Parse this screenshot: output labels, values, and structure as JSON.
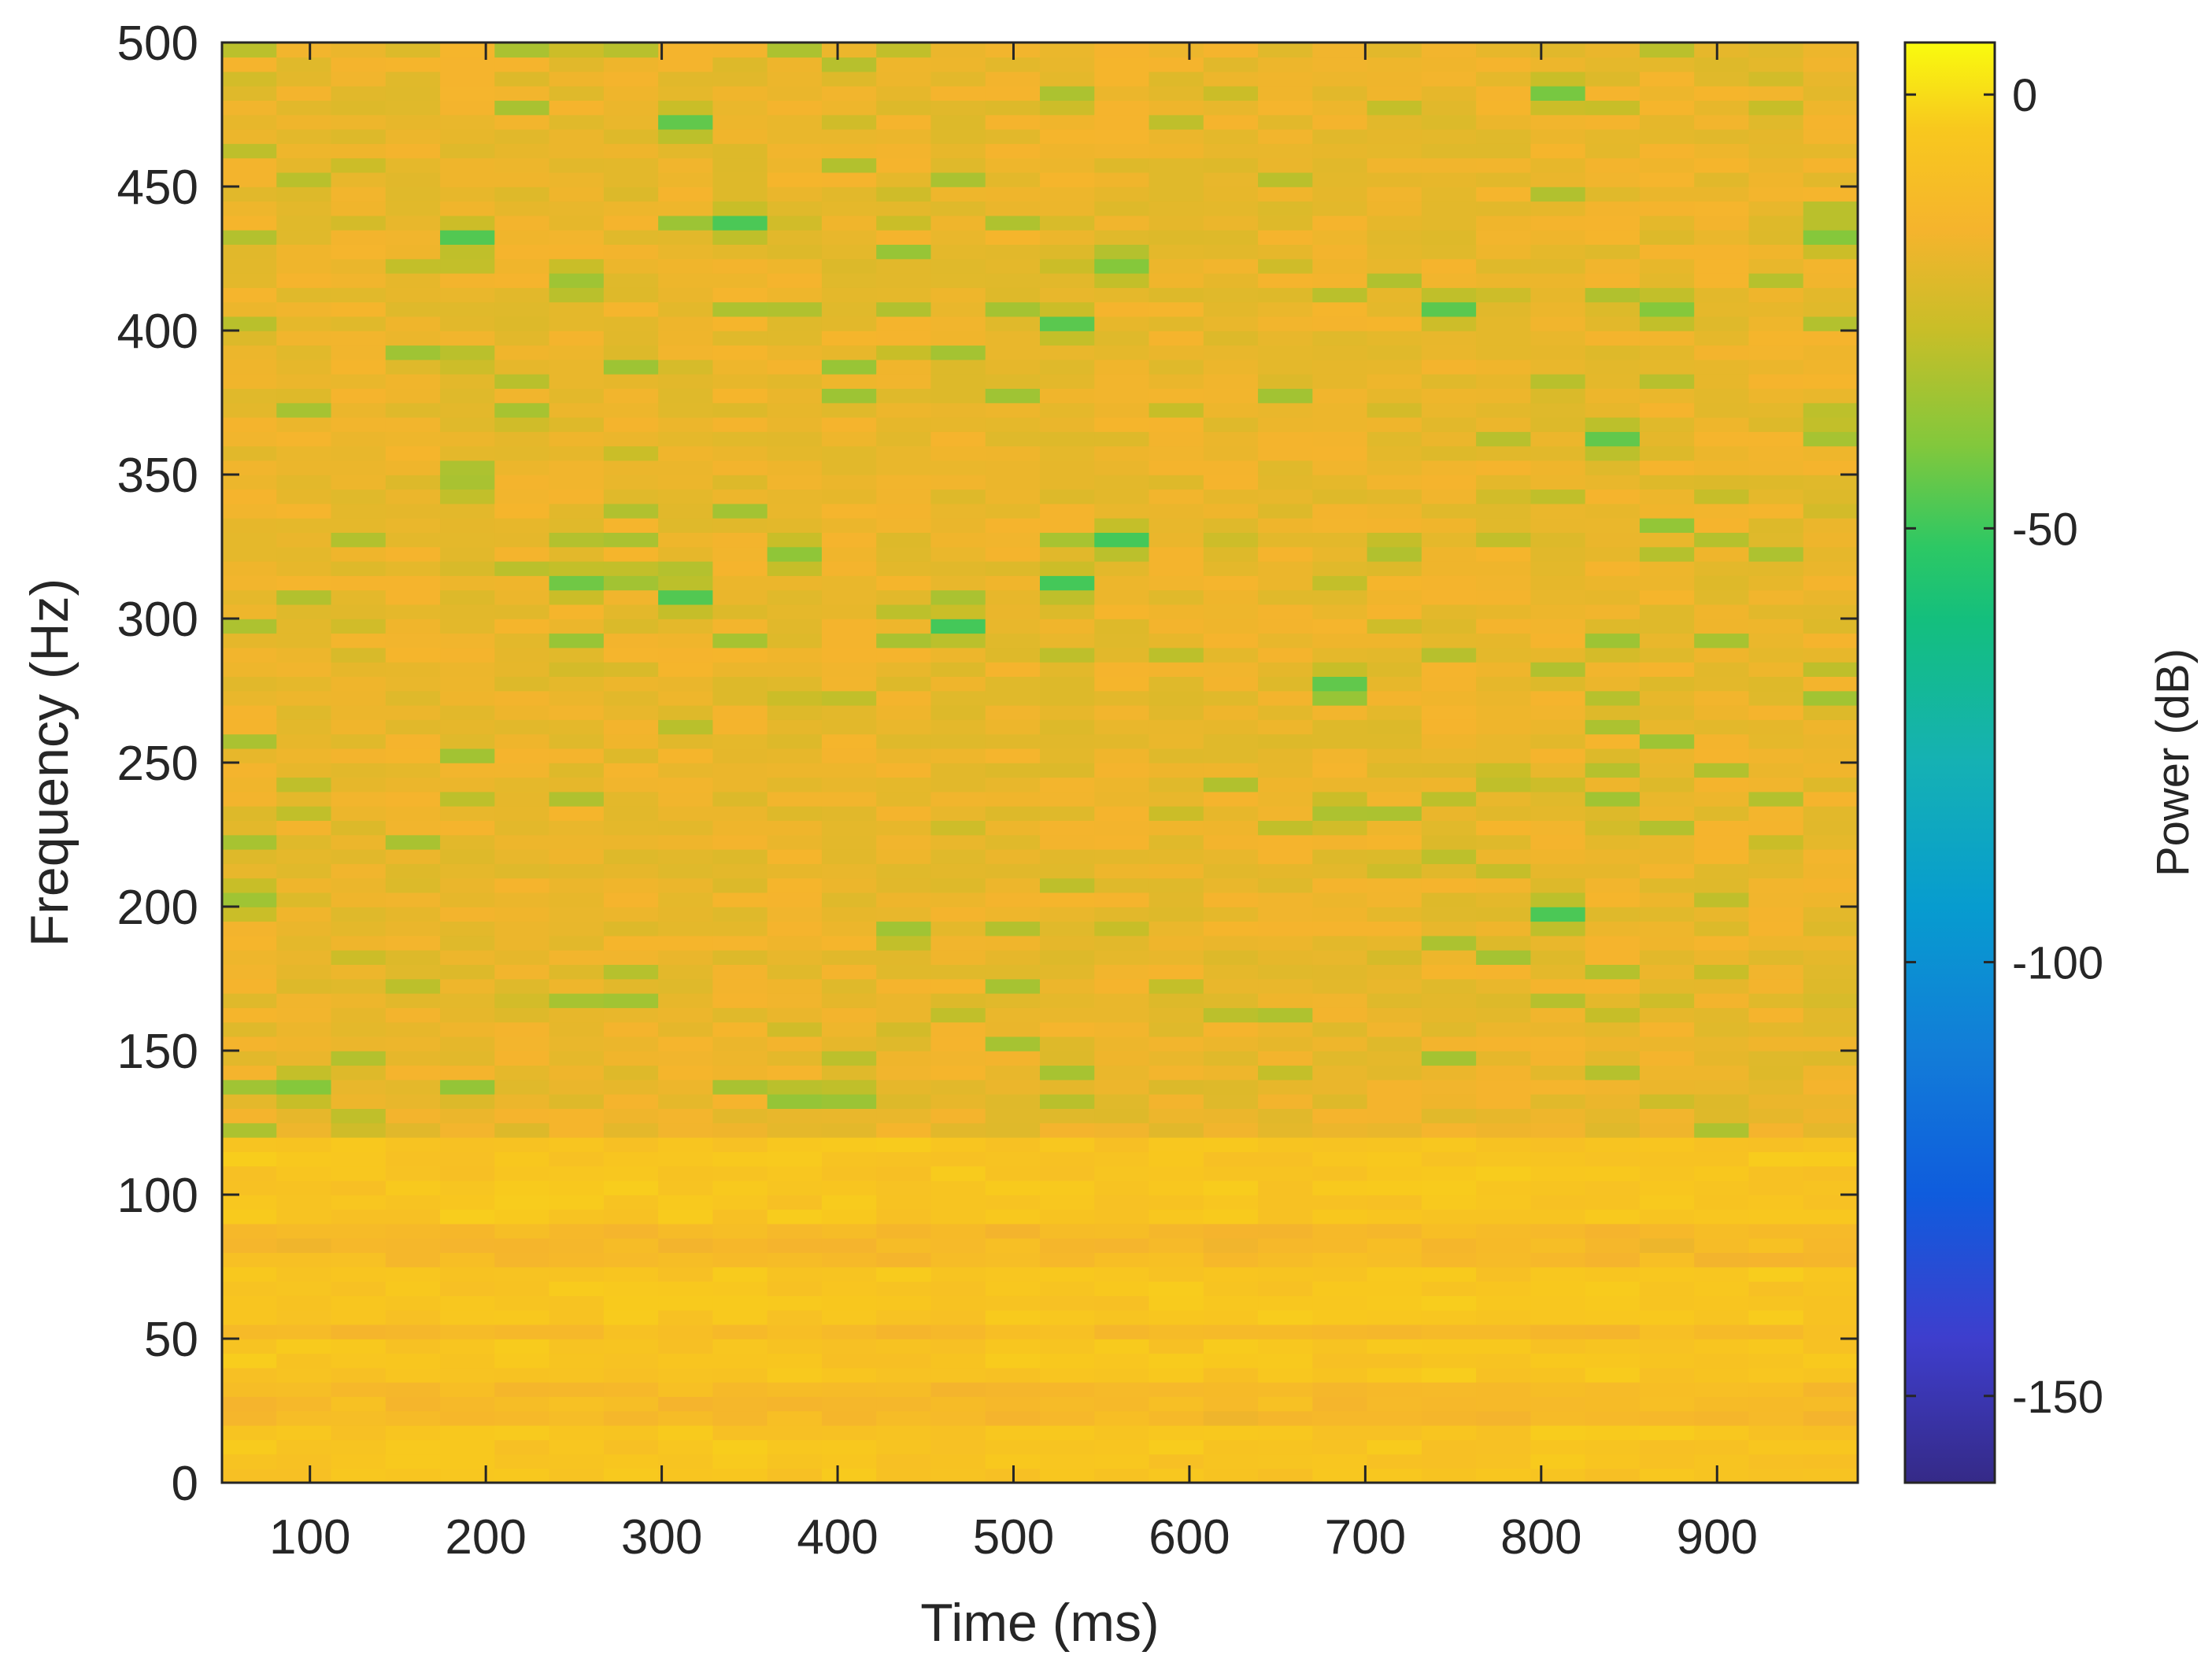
{
  "chart_data": {
    "type": "heatmap",
    "title": "",
    "xlabel": "Time (ms)",
    "ylabel": "Frequency (Hz)",
    "colorbar_label": "Power (dB)",
    "colormap": "parula",
    "xlim": [
      50,
      980
    ],
    "ylim": [
      0,
      500
    ],
    "clim": [
      -160,
      6
    ],
    "x_ticks": [
      100,
      200,
      300,
      400,
      500,
      600,
      700,
      800,
      900
    ],
    "x_tick_labels": [
      "100",
      "200",
      "300",
      "400",
      "500",
      "600",
      "700",
      "800",
      "900"
    ],
    "y_ticks": [
      0,
      50,
      100,
      150,
      200,
      250,
      300,
      350,
      400,
      450,
      500
    ],
    "y_tick_labels": [
      "0",
      "50",
      "100",
      "150",
      "200",
      "250",
      "300",
      "350",
      "400",
      "450",
      "500"
    ],
    "colorbar_ticks": [
      0,
      -50,
      -100,
      -150
    ],
    "colorbar_tick_labels": [
      "0",
      "-50",
      "-100",
      "-150"
    ],
    "time_bins_ms": [
      50,
      81,
      112,
      143,
      174,
      205,
      236,
      267,
      298,
      329,
      360,
      391,
      422,
      453,
      484,
      515,
      546,
      577,
      608,
      639,
      670,
      701,
      732,
      763,
      794,
      825,
      856,
      887,
      918,
      949,
      980
    ],
    "background_levels": {
      "low_band_0_120_Hz": "-2 to -8 dB",
      "upper_band_120_500_Hz": "-15 to -22 dB"
    },
    "notable_components": [
      {
        "time_ms": 65,
        "freq_hz": 204,
        "power_db": -35
      },
      {
        "time_ms": 95,
        "freq_hz": 137,
        "power_db": -40
      },
      {
        "time_ms": 188,
        "freq_hz": 431,
        "power_db": -47
      },
      {
        "time_ms": 188,
        "freq_hz": 348,
        "power_db": -33
      },
      {
        "time_ms": 250,
        "freq_hz": 416,
        "power_db": -35
      },
      {
        "time_ms": 250,
        "freq_hz": 313,
        "power_db": -43
      },
      {
        "time_ms": 312,
        "freq_hz": 474,
        "power_db": -45
      },
      {
        "time_ms": 312,
        "freq_hz": 309,
        "power_db": -47
      },
      {
        "time_ms": 343,
        "freq_hz": 439,
        "power_db": -48
      },
      {
        "time_ms": 374,
        "freq_hz": 321,
        "power_db": -38
      },
      {
        "time_ms": 467,
        "freq_hz": 297,
        "power_db": -49
      },
      {
        "time_ms": 529,
        "freq_hz": 400,
        "power_db": -46
      },
      {
        "time_ms": 529,
        "freq_hz": 314,
        "power_db": -49
      },
      {
        "time_ms": 560,
        "freq_hz": 420,
        "power_db": -40
      },
      {
        "time_ms": 560,
        "freq_hz": 326,
        "power_db": -49
      },
      {
        "time_ms": 684,
        "freq_hz": 278,
        "power_db": -45
      },
      {
        "time_ms": 746,
        "freq_hz": 407,
        "power_db": -46
      },
      {
        "time_ms": 808,
        "freq_hz": 480,
        "power_db": -42
      },
      {
        "time_ms": 808,
        "freq_hz": 195,
        "power_db": -48
      },
      {
        "time_ms": 839,
        "freq_hz": 361,
        "power_db": -45
      },
      {
        "time_ms": 870,
        "freq_hz": 405,
        "power_db": -40
      },
      {
        "time_ms": 963,
        "freq_hz": 432,
        "power_db": -40
      }
    ]
  }
}
